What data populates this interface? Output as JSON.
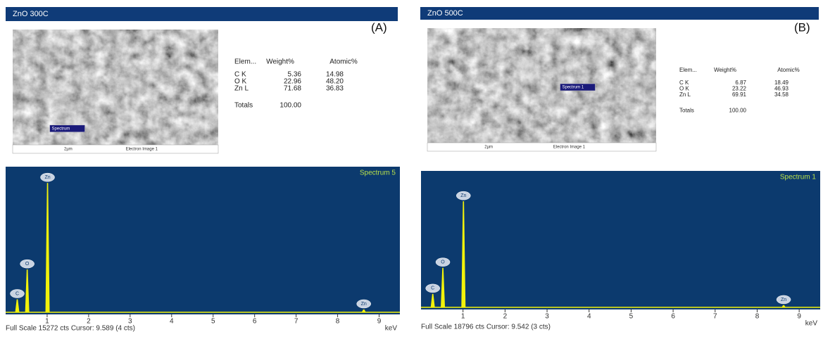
{
  "panels": [
    {
      "title": "ZnO 300C",
      "letter": "(A)",
      "image": {
        "marker": "Spectrum",
        "scale": "2µm",
        "caption": "Electron Image 1"
      },
      "table": {
        "header": [
          "Elem...",
          "Weight%",
          "Atomic%"
        ],
        "rows": [
          [
            "C K",
            "5.36",
            "14.98"
          ],
          [
            "O K",
            "22.96",
            "48.20"
          ],
          [
            "Zn L",
            "71.68",
            "36.83"
          ]
        ],
        "totals": [
          "Totals",
          "100.00"
        ]
      },
      "chart_data": {
        "type": "spectrum",
        "name": "Spectrum 5",
        "x_label": "keV",
        "footer": "Full Scale 15272 cts Cursor: 9.589  (4 cts)",
        "xlim": [
          0,
          9.5
        ],
        "xticks": [
          1,
          2,
          3,
          4,
          5,
          6,
          7,
          8,
          9
        ],
        "ylim": [
          0,
          15272
        ],
        "color": "#f2f20a",
        "background": "#0c3a6e",
        "peaks": [
          {
            "label": "C",
            "x": 0.28,
            "height": 1400
          },
          {
            "label": "O",
            "x": 0.52,
            "height": 4600
          },
          {
            "label": "Zn",
            "x": 1.01,
            "height": 13900
          },
          {
            "label": "Zn",
            "x": 8.63,
            "height": 300
          }
        ]
      }
    },
    {
      "title": "ZnO 500C",
      "letter": "(B)",
      "image": {
        "marker": "Spectrum 1",
        "scale": "2µm",
        "caption": "Electron Image 1"
      },
      "table": {
        "header": [
          "Elem...",
          "Weight%",
          "Atomic%"
        ],
        "rows": [
          [
            "C K",
            "6.87",
            "18.49"
          ],
          [
            "O K",
            "23.22",
            "46.93"
          ],
          [
            "Zn L",
            "69.91",
            "34.58"
          ]
        ],
        "totals": [
          "Totals",
          "100.00"
        ]
      },
      "chart_data": {
        "type": "spectrum",
        "name": "Spectrum 1",
        "x_label": "keV",
        "footer": "Full Scale 18796 cts Cursor: 9.542  (3 cts)",
        "xlim": [
          0,
          9.5
        ],
        "xticks": [
          1,
          2,
          3,
          4,
          5,
          6,
          7,
          8,
          9
        ],
        "ylim": [
          0,
          18796
        ],
        "color": "#f2f20a",
        "background": "#0c3a6e",
        "peaks": [
          {
            "label": "C",
            "x": 0.28,
            "height": 1900
          },
          {
            "label": "O",
            "x": 0.52,
            "height": 5600
          },
          {
            "label": "Zn",
            "x": 1.01,
            "height": 15000
          },
          {
            "label": "Zn",
            "x": 8.63,
            "height": 300
          }
        ]
      }
    }
  ]
}
